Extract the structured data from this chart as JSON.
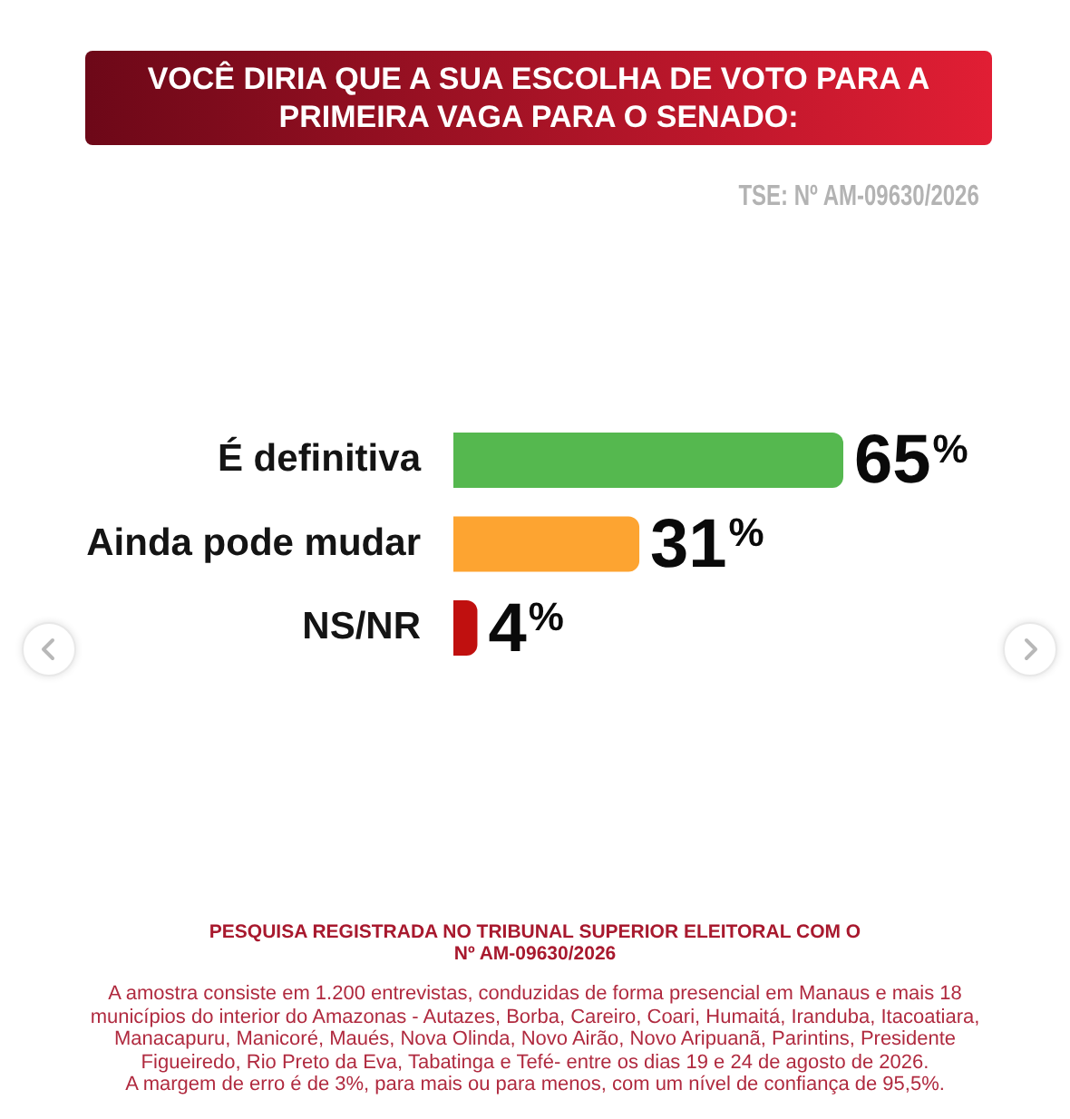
{
  "chart_data": {
    "type": "bar",
    "orientation": "horizontal",
    "title": "VOCÊ DIRIA QUE A SUA ESCOLHA DE VOTO PARA A PRIMEIRA VAGA PARA O SENADO:",
    "categories": [
      "É definitiva",
      "Ainda pode mudar",
      "NS/NR"
    ],
    "values": [
      65,
      31,
      4
    ],
    "colors": [
      "#55b84f",
      "#fda431",
      "#c0100f"
    ],
    "value_labels": [
      "65%",
      "31%",
      "4%"
    ],
    "tick_labels": "y",
    "annotations": [
      "TSE: Nº AM-09630/2026",
      "PESQUISA REGISTRADA NO TRIBUNAL SUPERIOR ELEITORAL COM O Nº AM-09630/2026",
      "A amostra consiste em 1.200 entrevistas, conduzidas de forma presencial em Manaus e mais 18 municípios do interior do Amazonas - Autazes, Borba, Careiro, Coari, Humaitá, Iranduba, Itacoatiara, Manacapuru, Manicoré, Maués, Nova Olinda, Novo Airão, Novo Aripuanã, Parintins, Presidente Figueiredo, Rio Preto da Eva, Tabatinga e Tefé- entre os dias 19 e 24 de agosto de 2026.",
      "A margem de erro é de 3%, para mais ou para menos, com um nível de confiança de 95,5%."
    ]
  }
}
